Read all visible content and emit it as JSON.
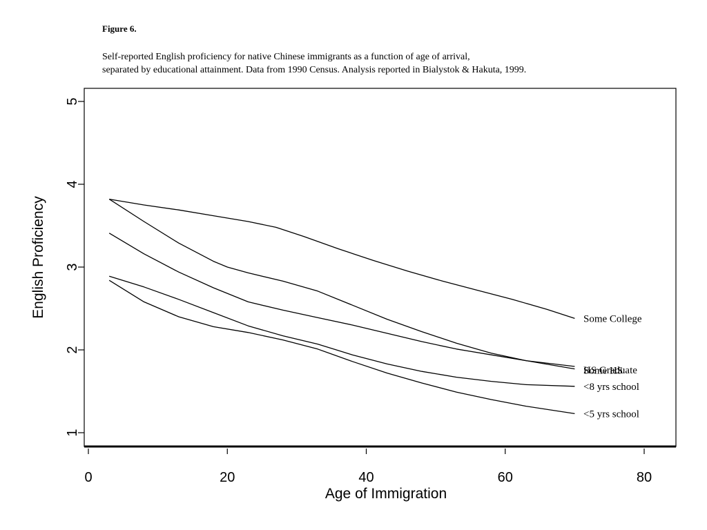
{
  "figure": {
    "label": "Figure 6.",
    "caption_lines": [
      "Self-reported English proficiency for native Chinese immigrants as a function of age of arrival,",
      "separated by educational attainment.  Data from 1990 Census. Analysis reported in Bialystok & Hakuta, 1999."
    ]
  },
  "chart_data": {
    "type": "line",
    "title": "",
    "xlabel": "Age of Immigration",
    "ylabel": "English Proficiency",
    "xlim": [
      -0.5,
      84
    ],
    "ylim": [
      0.85,
      5.15
    ],
    "xticks": [
      0,
      20,
      40,
      60,
      80
    ],
    "yticks": [
      1,
      2,
      3,
      4,
      5
    ],
    "grid": false,
    "legend": "none",
    "series": [
      {
        "name": "Some College",
        "x": [
          3,
          8,
          13,
          18,
          23,
          27,
          31,
          36,
          41,
          46,
          51,
          56,
          61,
          66,
          70
        ],
        "y": [
          3.82,
          3.75,
          3.69,
          3.62,
          3.55,
          3.48,
          3.37,
          3.22,
          3.08,
          2.95,
          2.83,
          2.72,
          2.61,
          2.49,
          2.38
        ]
      },
      {
        "name": "HS Graduate",
        "x": [
          3,
          8,
          13,
          18,
          20,
          23,
          28,
          33,
          38,
          43,
          48,
          53,
          58,
          63,
          70
        ],
        "y": [
          3.82,
          3.55,
          3.29,
          3.07,
          3.0,
          2.93,
          2.83,
          2.71,
          2.54,
          2.37,
          2.22,
          2.08,
          1.96,
          1.87,
          1.8
        ]
      },
      {
        "name": "Some HS",
        "x": [
          3,
          8,
          13,
          18,
          23,
          28,
          33,
          38,
          43,
          48,
          53,
          58,
          63,
          70
        ],
        "y": [
          3.41,
          3.16,
          2.94,
          2.75,
          2.58,
          2.48,
          2.39,
          2.3,
          2.2,
          2.1,
          2.01,
          1.94,
          1.87,
          1.77
        ]
      },
      {
        "name": "<8 yrs school",
        "x": [
          3,
          8,
          13,
          18,
          23,
          28,
          33,
          38,
          43,
          48,
          53,
          58,
          63,
          70
        ],
        "y": [
          2.89,
          2.76,
          2.61,
          2.45,
          2.29,
          2.17,
          2.07,
          1.94,
          1.83,
          1.74,
          1.67,
          1.62,
          1.58,
          1.56
        ]
      },
      {
        "name": "<5 yrs school",
        "x": [
          3,
          8,
          13,
          18,
          23,
          28,
          33,
          38,
          43,
          48,
          53,
          58,
          63,
          70
        ],
        "y": [
          2.84,
          2.58,
          2.4,
          2.28,
          2.21,
          2.12,
          2.01,
          1.86,
          1.72,
          1.6,
          1.49,
          1.4,
          1.32,
          1.23
        ]
      }
    ]
  }
}
